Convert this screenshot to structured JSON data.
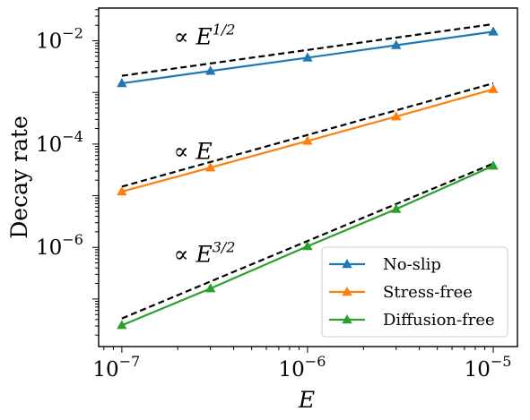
{
  "chart_data": {
    "type": "line",
    "xlabel": "E",
    "ylabel": "Decay rate",
    "xscale": "log",
    "yscale": "log",
    "xlim": [
      7.5e-08,
      1.35e-05
    ],
    "ylim": [
      1.2e-08,
      0.043
    ],
    "x_ticks": [
      {
        "value": 1e-07,
        "base": "10",
        "exp": "−7"
      },
      {
        "value": 1e-06,
        "base": "10",
        "exp": "−6"
      },
      {
        "value": 1e-05,
        "base": "10",
        "exp": "−5"
      }
    ],
    "y_ticks": [
      {
        "value": 0.01,
        "base": "10",
        "exp": "−2"
      },
      {
        "value": 0.0001,
        "base": "10",
        "exp": "−4"
      },
      {
        "value": 1e-06,
        "base": "10",
        "exp": "−6"
      }
    ],
    "x": [
      1e-07,
      3e-07,
      1e-06,
      3e-06,
      1e-05
    ],
    "series": [
      {
        "name": "No-slip",
        "color": "#1f77b4",
        "values": [
          0.0015,
          0.0026,
          0.0047,
          0.0082,
          0.015
        ]
      },
      {
        "name": "Stress-free",
        "color": "#ff7f0e",
        "values": [
          1.2e-05,
          3.5e-05,
          0.000115,
          0.00034,
          0.00115
        ]
      },
      {
        "name": "Diffusion-free",
        "color": "#2ca02c",
        "values": [
          3.1e-08,
          1.6e-07,
          1.05e-06,
          5.5e-06,
          3.8e-05
        ]
      }
    ],
    "reference_lines": [
      {
        "label_base": "∝ E",
        "label_exp": "1/2",
        "exponent": 0.5,
        "values": [
          0.0021,
          0.021
        ],
        "color": "#000000"
      },
      {
        "label_base": "∝ E",
        "label_exp": "",
        "exponent": 1.0,
        "values": [
          1.5e-05,
          0.0015
        ],
        "color": "#000000"
      },
      {
        "label_base": "∝ E",
        "label_exp": "3/2",
        "exponent": 1.5,
        "values": [
          4.2e-08,
          4.2e-05
        ],
        "color": "#000000"
      }
    ],
    "legend": {
      "placement": "bottom-right"
    },
    "grid": false
  }
}
